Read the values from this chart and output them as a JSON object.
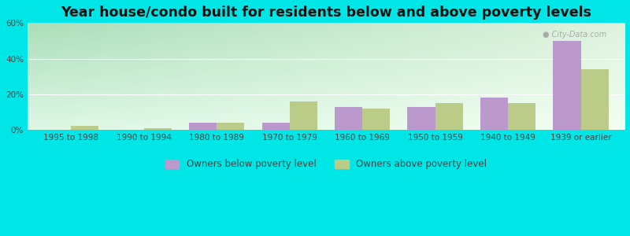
{
  "title": "Year house/condo built for residents below and above poverty levels",
  "categories": [
    "1995 to 1998",
    "1990 to 1994",
    "1980 to 1989",
    "1970 to 1979",
    "1960 to 1969",
    "1950 to 1959",
    "1940 to 1949",
    "1939 or earlier"
  ],
  "below_poverty": [
    0,
    0,
    4,
    4,
    13,
    13,
    18,
    50
  ],
  "above_poverty": [
    2,
    1,
    4,
    16,
    12,
    15,
    15,
    34
  ],
  "below_color": "#bb99cc",
  "above_color": "#bbcc88",
  "outer_bg": "#00e5e5",
  "bg_color_topleft": "#aaddbb",
  "bg_color_bottomright": "#eeffee",
  "ylim": [
    0,
    60
  ],
  "yticks": [
    0,
    20,
    40,
    60
  ],
  "ytick_labels": [
    "0%",
    "20%",
    "40%",
    "60%"
  ],
  "bar_width": 0.38,
  "legend_below": "Owners below poverty level",
  "legend_above": "Owners above poverty level",
  "title_fontsize": 12.5,
  "tick_fontsize": 7.5,
  "legend_fontsize": 8.5
}
